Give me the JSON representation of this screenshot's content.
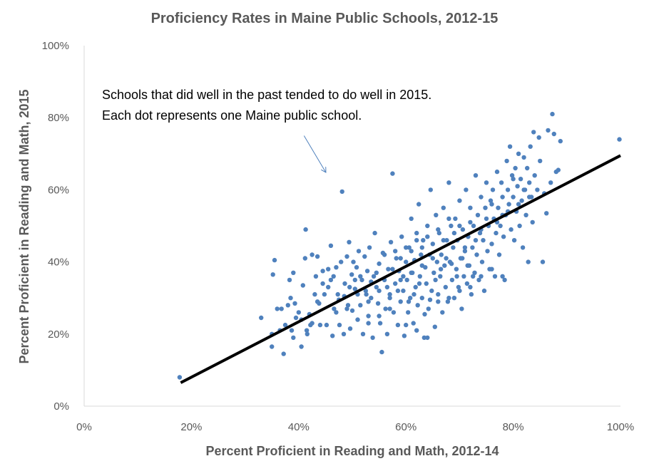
{
  "colors": {
    "points": "#4F81BD",
    "trendline": "#000000",
    "arrow": "#4F81BD",
    "axis": "#D9D9D9",
    "text": "#595959"
  },
  "chart_data": {
    "type": "scatter",
    "title": "Proficiency Rates in Maine Public Schools, 2012-15",
    "xlabel": "Percent Proficient in Reading and Math, 2012-14",
    "ylabel": "Percent Proficient in Reading and Math, 2015",
    "xlim": [
      0,
      1
    ],
    "ylim": [
      0,
      1
    ],
    "x_ticks": [
      "0%",
      "20%",
      "40%",
      "60%",
      "80%",
      "100%"
    ],
    "y_ticks": [
      "0%",
      "20%",
      "40%",
      "60%",
      "80%",
      "100%"
    ],
    "grid": false,
    "annotation": {
      "lines": [
        "Schools that did well in the past tended to do well in 2015.",
        "Each dot represents one Maine public school."
      ],
      "arrow_from": [
        0.41,
        0.75
      ],
      "arrow_to": [
        0.45,
        0.65
      ]
    },
    "trendline": {
      "x": [
        0.18,
        1.0
      ],
      "y": [
        0.065,
        0.695
      ]
    },
    "points": [
      [
        0.178,
        0.08
      ],
      [
        0.33,
        0.245
      ],
      [
        0.35,
        0.165
      ],
      [
        0.35,
        0.2
      ],
      [
        0.352,
        0.365
      ],
      [
        0.355,
        0.405
      ],
      [
        0.368,
        0.27
      ],
      [
        0.372,
        0.145
      ],
      [
        0.38,
        0.28
      ],
      [
        0.383,
        0.35
      ],
      [
        0.387,
        0.21
      ],
      [
        0.39,
        0.19
      ],
      [
        0.39,
        0.37
      ],
      [
        0.393,
        0.285
      ],
      [
        0.4,
        0.26
      ],
      [
        0.405,
        0.24
      ],
      [
        0.408,
        0.335
      ],
      [
        0.412,
        0.41
      ],
      [
        0.413,
        0.49
      ],
      [
        0.416,
        0.2
      ],
      [
        0.42,
        0.255
      ],
      [
        0.422,
        0.225
      ],
      [
        0.425,
        0.42
      ],
      [
        0.43,
        0.31
      ],
      [
        0.432,
        0.36
      ],
      [
        0.435,
        0.415
      ],
      [
        0.438,
        0.285
      ],
      [
        0.44,
        0.225
      ],
      [
        0.445,
        0.375
      ],
      [
        0.448,
        0.31
      ],
      [
        0.452,
        0.225
      ],
      [
        0.455,
        0.33
      ],
      [
        0.46,
        0.35
      ],
      [
        0.46,
        0.445
      ],
      [
        0.463,
        0.195
      ],
      [
        0.466,
        0.27
      ],
      [
        0.47,
        0.385
      ],
      [
        0.473,
        0.31
      ],
      [
        0.476,
        0.225
      ],
      [
        0.479,
        0.4
      ],
      [
        0.481,
        0.595
      ],
      [
        0.484,
        0.2
      ],
      [
        0.486,
        0.34
      ],
      [
        0.49,
        0.415
      ],
      [
        0.492,
        0.28
      ],
      [
        0.494,
        0.455
      ],
      [
        0.496,
        0.215
      ],
      [
        0.499,
        0.365
      ],
      [
        0.5,
        0.265
      ],
      [
        0.502,
        0.4
      ],
      [
        0.505,
        0.325
      ],
      [
        0.508,
        0.385
      ],
      [
        0.51,
        0.24
      ],
      [
        0.512,
        0.43
      ],
      [
        0.515,
        0.28
      ],
      [
        0.518,
        0.35
      ],
      [
        0.52,
        0.2
      ],
      [
        0.523,
        0.415
      ],
      [
        0.526,
        0.31
      ],
      [
        0.528,
        0.375
      ],
      [
        0.53,
        0.25
      ],
      [
        0.532,
        0.44
      ],
      [
        0.535,
        0.3
      ],
      [
        0.538,
        0.19
      ],
      [
        0.54,
        0.36
      ],
      [
        0.542,
        0.48
      ],
      [
        0.545,
        0.33
      ],
      [
        0.548,
        0.285
      ],
      [
        0.55,
        0.395
      ],
      [
        0.552,
        0.23
      ],
      [
        0.555,
        0.15
      ],
      [
        0.557,
        0.425
      ],
      [
        0.56,
        0.35
      ],
      [
        0.562,
        0.27
      ],
      [
        0.565,
        0.2
      ],
      [
        0.567,
        0.38
      ],
      [
        0.57,
        0.31
      ],
      [
        0.572,
        0.455
      ],
      [
        0.575,
        0.645
      ],
      [
        0.577,
        0.26
      ],
      [
        0.58,
        0.34
      ],
      [
        0.582,
        0.41
      ],
      [
        0.585,
        0.225
      ],
      [
        0.587,
        0.375
      ],
      [
        0.59,
        0.29
      ],
      [
        0.592,
        0.47
      ],
      [
        0.595,
        0.32
      ],
      [
        0.597,
        0.195
      ],
      [
        0.6,
        0.4
      ],
      [
        0.602,
        0.35
      ],
      [
        0.604,
        0.26
      ],
      [
        0.606,
        0.44
      ],
      [
        0.608,
        0.3
      ],
      [
        0.61,
        0.52
      ],
      [
        0.612,
        0.37
      ],
      [
        0.614,
        0.23
      ],
      [
        0.616,
        0.405
      ],
      [
        0.618,
        0.33
      ],
      [
        0.62,
        0.48
      ],
      [
        0.622,
        0.28
      ],
      [
        0.624,
        0.56
      ],
      [
        0.626,
        0.36
      ],
      [
        0.628,
        0.42
      ],
      [
        0.63,
        0.3
      ],
      [
        0.632,
        0.46
      ],
      [
        0.634,
        0.19
      ],
      [
        0.636,
        0.385
      ],
      [
        0.638,
        0.34
      ],
      [
        0.64,
        0.5
      ],
      [
        0.642,
        0.27
      ],
      [
        0.644,
        0.42
      ],
      [
        0.646,
        0.6
      ],
      [
        0.648,
        0.32
      ],
      [
        0.65,
        0.45
      ],
      [
        0.652,
        0.37
      ],
      [
        0.654,
        0.22
      ],
      [
        0.656,
        0.53
      ],
      [
        0.658,
        0.4
      ],
      [
        0.66,
        0.31
      ],
      [
        0.662,
        0.48
      ],
      [
        0.664,
        0.36
      ],
      [
        0.666,
        0.42
      ],
      [
        0.668,
        0.26
      ],
      [
        0.67,
        0.55
      ],
      [
        0.672,
        0.39
      ],
      [
        0.674,
        0.33
      ],
      [
        0.676,
        0.46
      ],
      [
        0.678,
        0.29
      ],
      [
        0.68,
        0.62
      ],
      [
        0.682,
        0.4
      ],
      [
        0.684,
        0.5
      ],
      [
        0.686,
        0.35
      ],
      [
        0.688,
        0.44
      ],
      [
        0.69,
        0.3
      ],
      [
        0.692,
        0.52
      ],
      [
        0.694,
        0.38
      ],
      [
        0.696,
        0.46
      ],
      [
        0.698,
        0.33
      ],
      [
        0.7,
        0.57
      ],
      [
        0.702,
        0.41
      ],
      [
        0.704,
        0.27
      ],
      [
        0.706,
        0.49
      ],
      [
        0.708,
        0.36
      ],
      [
        0.71,
        0.43
      ],
      [
        0.712,
        0.6
      ],
      [
        0.714,
        0.34
      ],
      [
        0.716,
        0.47
      ],
      [
        0.718,
        0.39
      ],
      [
        0.72,
        0.55
      ],
      [
        0.722,
        0.31
      ],
      [
        0.724,
        0.44
      ],
      [
        0.726,
        0.5
      ],
      [
        0.728,
        0.37
      ],
      [
        0.73,
        0.64
      ],
      [
        0.732,
        0.42
      ],
      [
        0.734,
        0.53
      ],
      [
        0.736,
        0.35
      ],
      [
        0.738,
        0.48
      ],
      [
        0.74,
        0.58
      ],
      [
        0.742,
        0.4
      ],
      [
        0.744,
        0.46
      ],
      [
        0.746,
        0.32
      ],
      [
        0.748,
        0.55
      ],
      [
        0.75,
        0.62
      ],
      [
        0.752,
        0.43
      ],
      [
        0.754,
        0.5
      ],
      [
        0.756,
        0.38
      ],
      [
        0.758,
        0.57
      ],
      [
        0.76,
        0.45
      ],
      [
        0.762,
        0.6
      ],
      [
        0.764,
        0.52
      ],
      [
        0.766,
        0.36
      ],
      [
        0.768,
        0.48
      ],
      [
        0.77,
        0.65
      ],
      [
        0.772,
        0.55
      ],
      [
        0.774,
        0.42
      ],
      [
        0.776,
        0.5
      ],
      [
        0.778,
        0.62
      ],
      [
        0.78,
        0.58
      ],
      [
        0.782,
        0.47
      ],
      [
        0.784,
        0.35
      ],
      [
        0.786,
        0.53
      ],
      [
        0.788,
        0.68
      ],
      [
        0.79,
        0.6
      ],
      [
        0.792,
        0.56
      ],
      [
        0.794,
        0.72
      ],
      [
        0.796,
        0.49
      ],
      [
        0.798,
        0.64
      ],
      [
        0.8,
        0.58
      ],
      [
        0.802,
        0.46
      ],
      [
        0.804,
        0.66
      ],
      [
        0.806,
        0.54
      ],
      [
        0.808,
        0.61
      ],
      [
        0.81,
        0.7
      ],
      [
        0.812,
        0.5
      ],
      [
        0.814,
        0.63
      ],
      [
        0.816,
        0.57
      ],
      [
        0.818,
        0.44
      ],
      [
        0.82,
        0.69
      ],
      [
        0.822,
        0.6
      ],
      [
        0.824,
        0.53
      ],
      [
        0.826,
        0.66
      ],
      [
        0.828,
        0.4
      ],
      [
        0.83,
        0.62
      ],
      [
        0.832,
        0.72
      ],
      [
        0.834,
        0.58
      ],
      [
        0.836,
        0.51
      ],
      [
        0.838,
        0.76
      ],
      [
        0.84,
        0.64
      ],
      [
        0.845,
        0.6
      ],
      [
        0.848,
        0.745
      ],
      [
        0.85,
        0.68
      ],
      [
        0.855,
        0.4
      ],
      [
        0.858,
        0.59
      ],
      [
        0.862,
        0.535
      ],
      [
        0.865,
        0.765
      ],
      [
        0.87,
        0.62
      ],
      [
        0.873,
        0.81
      ],
      [
        0.876,
        0.755
      ],
      [
        0.88,
        0.65
      ],
      [
        0.884,
        0.655
      ],
      [
        0.888,
        0.735
      ],
      [
        0.998,
        0.74
      ],
      [
        0.635,
        0.255
      ],
      [
        0.645,
        0.295
      ],
      [
        0.655,
        0.35
      ],
      [
        0.665,
        0.38
      ],
      [
        0.675,
        0.41
      ],
      [
        0.605,
        0.29
      ],
      [
        0.615,
        0.31
      ],
      [
        0.625,
        0.34
      ],
      [
        0.585,
        0.32
      ],
      [
        0.595,
        0.36
      ],
      [
        0.705,
        0.41
      ],
      [
        0.715,
        0.39
      ],
      [
        0.725,
        0.36
      ],
      [
        0.695,
        0.36
      ],
      [
        0.685,
        0.395
      ],
      [
        0.575,
        0.38
      ],
      [
        0.565,
        0.33
      ],
      [
        0.545,
        0.37
      ],
      [
        0.535,
        0.345
      ],
      [
        0.525,
        0.32
      ],
      [
        0.515,
        0.36
      ],
      [
        0.505,
        0.35
      ],
      [
        0.495,
        0.33
      ],
      [
        0.485,
        0.305
      ],
      [
        0.475,
        0.295
      ],
      [
        0.465,
        0.36
      ],
      [
        0.455,
        0.38
      ],
      [
        0.445,
        0.34
      ],
      [
        0.435,
        0.29
      ],
      [
        0.425,
        0.23
      ],
      [
        0.415,
        0.21
      ],
      [
        0.405,
        0.165
      ],
      [
        0.395,
        0.245
      ],
      [
        0.385,
        0.3
      ],
      [
        0.375,
        0.225
      ],
      [
        0.365,
        0.21
      ],
      [
        0.36,
        0.27
      ],
      [
        0.59,
        0.41
      ],
      [
        0.61,
        0.43
      ],
      [
        0.63,
        0.44
      ],
      [
        0.65,
        0.41
      ],
      [
        0.67,
        0.46
      ],
      [
        0.69,
        0.48
      ],
      [
        0.71,
        0.44
      ],
      [
        0.73,
        0.46
      ],
      [
        0.75,
        0.52
      ],
      [
        0.77,
        0.51
      ],
      [
        0.79,
        0.54
      ],
      [
        0.81,
        0.56
      ],
      [
        0.83,
        0.58
      ],
      [
        0.57,
        0.27
      ],
      [
        0.55,
        0.25
      ],
      [
        0.53,
        0.23
      ],
      [
        0.6,
        0.225
      ],
      [
        0.62,
        0.21
      ],
      [
        0.64,
        0.19
      ],
      [
        0.66,
        0.29
      ],
      [
        0.68,
        0.3
      ],
      [
        0.7,
        0.32
      ],
      [
        0.72,
        0.33
      ],
      [
        0.74,
        0.36
      ],
      [
        0.76,
        0.38
      ],
      [
        0.78,
        0.36
      ],
      [
        0.63,
        0.39
      ],
      [
        0.61,
        0.37
      ],
      [
        0.59,
        0.35
      ],
      [
        0.57,
        0.3
      ],
      [
        0.55,
        0.32
      ],
      [
        0.53,
        0.29
      ],
      [
        0.51,
        0.31
      ],
      [
        0.49,
        0.27
      ],
      [
        0.47,
        0.26
      ],
      [
        0.66,
        0.49
      ],
      [
        0.68,
        0.52
      ],
      [
        0.7,
        0.5
      ],
      [
        0.72,
        0.51
      ],
      [
        0.74,
        0.49
      ],
      [
        0.76,
        0.56
      ],
      [
        0.78,
        0.53
      ],
      [
        0.8,
        0.63
      ],
      [
        0.82,
        0.6
      ],
      [
        0.64,
        0.47
      ],
      [
        0.62,
        0.46
      ],
      [
        0.6,
        0.44
      ],
      [
        0.58,
        0.43
      ],
      [
        0.56,
        0.42
      ]
    ]
  }
}
